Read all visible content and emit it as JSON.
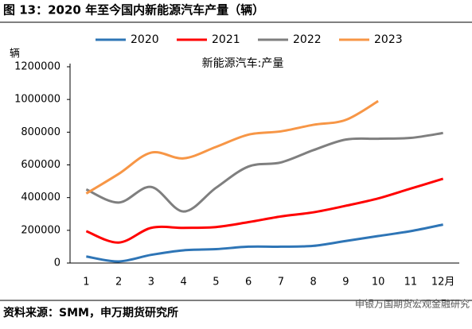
{
  "chart_data": {
    "type": "line",
    "title": "图 13：2020 年至今国内新能源汽车产量（辆）",
    "subtitle": "新能源汽车:产量",
    "y_label": "辆",
    "source": "资料来源：SMM，申万期货研究所",
    "watermark": "申银万国期货宏观金融研究",
    "categories": [
      "1",
      "2",
      "3",
      "4",
      "5",
      "6",
      "7",
      "8",
      "9",
      "10",
      "11",
      "12月"
    ],
    "series": [
      {
        "name": "2020",
        "color": "#2e75b6",
        "values": [
          40000,
          10000,
          50000,
          78000,
          85000,
          100000,
          100000,
          105000,
          135000,
          165000,
          195000,
          235000
        ]
      },
      {
        "name": "2021",
        "color": "#ff0000",
        "values": [
          195000,
          125000,
          215000,
          215000,
          220000,
          250000,
          285000,
          310000,
          350000,
          395000,
          455000,
          515000
        ]
      },
      {
        "name": "2022",
        "color": "#7f7f7f",
        "values": [
          450000,
          370000,
          465000,
          315000,
          460000,
          590000,
          615000,
          690000,
          755000,
          760000,
          765000,
          795000
        ]
      },
      {
        "name": "2023",
        "color": "#f79646",
        "values": [
          425000,
          545000,
          675000,
          640000,
          710000,
          785000,
          805000,
          845000,
          875000,
          990000,
          null,
          null
        ]
      }
    ],
    "ylim": [
      0,
      1200000
    ],
    "yticks": [
      0,
      200000,
      400000,
      600000,
      800000,
      1000000,
      1200000
    ],
    "grid": false,
    "legend": "top"
  }
}
